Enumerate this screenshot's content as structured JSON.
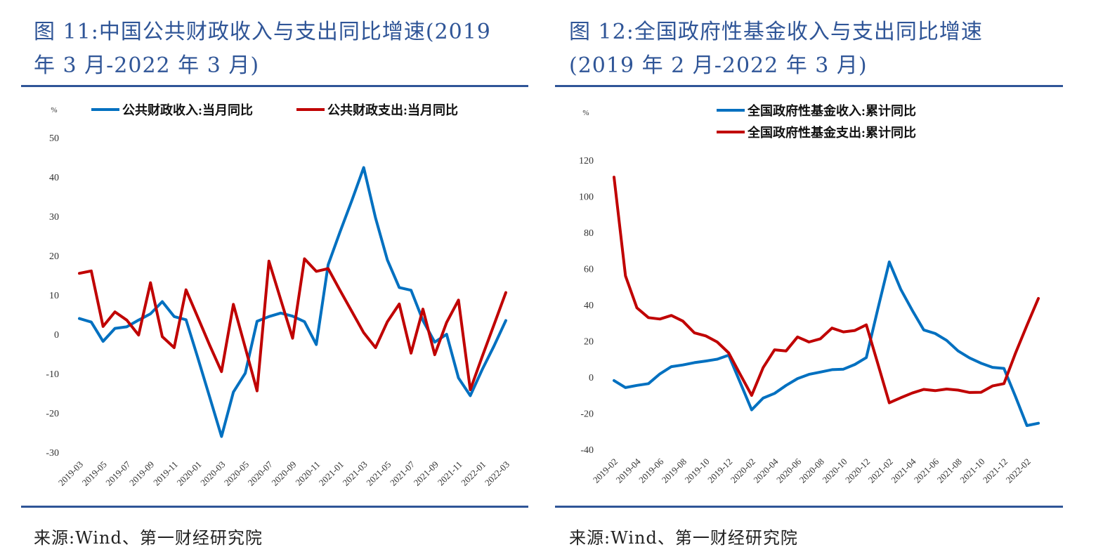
{
  "chart_data": [
    {
      "type": "line",
      "title": "图 11:中国公共财政收入与支出同比增速(2019年3月-2022年3月)",
      "title_lines": [
        "图 11:中国公共财政收入与支出同比增速(2019",
        "年 3 月-2022 年 3 月)"
      ],
      "unit_label": "%",
      "ylim": [
        -30,
        50
      ],
      "yticks": [
        50,
        40,
        30,
        20,
        10,
        0,
        -10,
        -20,
        -30
      ],
      "xtick_labels": [
        "2019-03",
        "2019-05",
        "2019-07",
        "2019-09",
        "2019-11",
        "2020-01",
        "2020-03",
        "2020-05",
        "2020-07",
        "2020-09",
        "2020-11",
        "2021-01",
        "2021-03",
        "2021-05",
        "2021-07",
        "2021-09",
        "2021-11",
        "2022-01",
        "2022-03"
      ],
      "x": [
        "2019-03",
        "2019-04",
        "2019-05",
        "2019-06",
        "2019-07",
        "2019-08",
        "2019-09",
        "2019-10",
        "2019-11",
        "2019-12",
        "2020-01",
        "2020-02",
        "2020-03",
        "2020-04",
        "2020-05",
        "2020-06",
        "2020-07",
        "2020-08",
        "2020-09",
        "2020-10",
        "2020-11",
        "2020-12",
        "2021-01",
        "2021-02",
        "2021-03",
        "2021-04",
        "2021-05",
        "2021-06",
        "2021-07",
        "2021-08",
        "2021-09",
        "2021-10",
        "2021-11",
        "2021-12",
        "2022-01",
        "2022-02",
        "2022-03"
      ],
      "legend_position": "top",
      "grid": false,
      "series": [
        {
          "name": "公共财政收入:当月同比",
          "color": "#0070C0",
          "values": [
            4.0,
            3.1,
            -1.8,
            1.5,
            1.9,
            3.6,
            5.2,
            8.3,
            4.5,
            3.7,
            -6.0,
            -16.0,
            -26.0,
            -14.7,
            -9.9,
            3.3,
            4.5,
            5.4,
            4.6,
            3.2,
            -2.6,
            17.7,
            26.0,
            34.0,
            42.4,
            29.6,
            18.9,
            11.9,
            11.2,
            3.5,
            -2.0,
            0.0,
            -11.1,
            -15.6,
            -9.0,
            -3.0,
            3.5
          ]
        },
        {
          "name": "公共财政支出:当月同比",
          "color": "#C00000",
          "values": [
            15.5,
            16.1,
            2.0,
            5.7,
            3.6,
            -0.2,
            13.1,
            -0.6,
            -3.4,
            11.3,
            4.3,
            -2.8,
            -9.5,
            7.6,
            -3.4,
            -14.4,
            18.6,
            8.8,
            -1.0,
            19.2,
            16.0,
            16.7,
            11.2,
            5.8,
            0.4,
            -3.4,
            3.2,
            7.7,
            -4.8,
            6.4,
            -5.2,
            3.0,
            8.7,
            -14.1,
            -5.7,
            2.4,
            10.6
          ]
        }
      ],
      "source": "来源:Wind、第一财经研究院"
    },
    {
      "type": "line",
      "title": "图 12:全国政府性基金收入与支出同比增速(2019年2月-2022年3月)",
      "title_lines": [
        "图 12:全国政府性基金收入与支出同比增速",
        "(2019 年 2 月-2022 年 3 月)"
      ],
      "unit_label": "%",
      "ylim": [
        -40,
        120
      ],
      "yticks": [
        120,
        100,
        80,
        60,
        40,
        20,
        0,
        -20,
        -40
      ],
      "xtick_labels": [
        "2019-02",
        "2019-04",
        "2019-06",
        "2019-08",
        "2019-10",
        "2019-12",
        "2020-02",
        "2020-04",
        "2020-06",
        "2020-08",
        "2020-10",
        "2020-12",
        "2021-02",
        "2021-04",
        "2021-06",
        "2021-08",
        "2021-10",
        "2021-12",
        "2022-02"
      ],
      "x": [
        "2019-02",
        "2019-03",
        "2019-04",
        "2019-05",
        "2019-06",
        "2019-07",
        "2019-08",
        "2019-09",
        "2019-10",
        "2019-11",
        "2019-12",
        "2020-01",
        "2020-02",
        "2020-03",
        "2020-04",
        "2020-05",
        "2020-06",
        "2020-07",
        "2020-08",
        "2020-09",
        "2020-10",
        "2020-11",
        "2020-12",
        "2021-01",
        "2021-02",
        "2021-03",
        "2021-04",
        "2021-05",
        "2021-06",
        "2021-07",
        "2021-08",
        "2021-09",
        "2021-10",
        "2021-11",
        "2021-12",
        "2022-01",
        "2022-02",
        "2022-03"
      ],
      "legend_position": "top",
      "grid": false,
      "series": [
        {
          "name": "全国政府性基金收入:累计同比",
          "color": "#0070C0",
          "values": [
            -1.9,
            -5.8,
            -4.6,
            -3.6,
            1.8,
            5.8,
            6.7,
            8.0,
            8.9,
            9.9,
            12.1,
            -3.0,
            -18.1,
            -11.6,
            -9.0,
            -4.6,
            -0.8,
            1.5,
            2.8,
            4.1,
            4.4,
            7.0,
            10.8,
            37.7,
            63.7,
            48.6,
            37.0,
            26.1,
            24.1,
            20.3,
            14.5,
            10.6,
            7.7,
            5.4,
            4.8,
            -10.7,
            -26.8,
            -25.5
          ]
        },
        {
          "name": "全国政府性基金支出:累计同比",
          "color": "#C00000",
          "values": [
            110.6,
            56.0,
            38.3,
            32.9,
            32.1,
            34.1,
            31.0,
            24.5,
            22.8,
            19.4,
            13.4,
            1.5,
            -10.1,
            5.2,
            15.1,
            14.5,
            22.2,
            19.4,
            21.2,
            27.1,
            25.0,
            25.8,
            28.9,
            7.4,
            -14.2,
            -11.4,
            -8.8,
            -6.8,
            -7.5,
            -6.6,
            -7.2,
            -8.5,
            -8.4,
            -4.9,
            -3.6,
            13.2,
            28.6,
            43.5
          ]
        }
      ],
      "source": "来源:Wind、第一财经研究院"
    }
  ],
  "colors": {
    "title": "#2F5597",
    "rule": "#2F5597"
  }
}
